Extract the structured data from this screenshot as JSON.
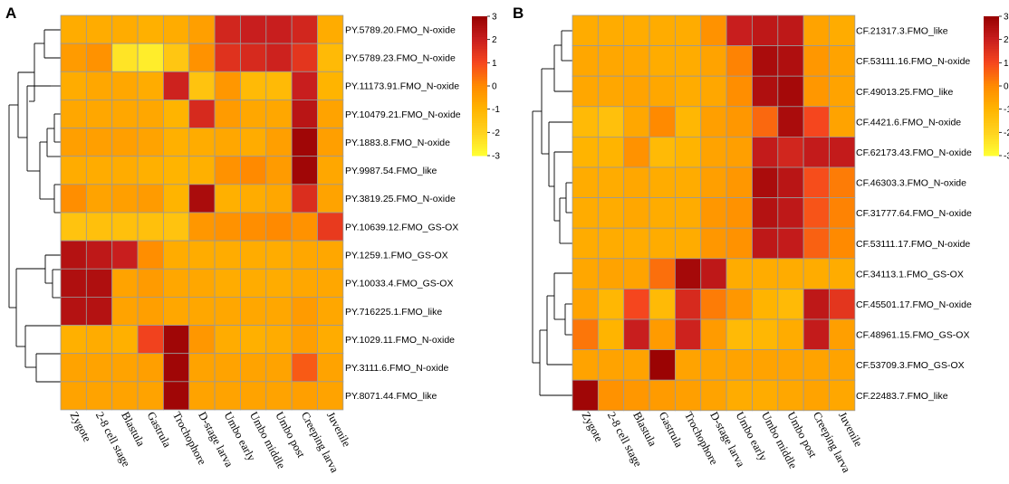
{
  "colors": {
    "scale": [
      "#FFFF33",
      "#FFD21E",
      "#FFB400",
      "#FF8A00",
      "#F5461E",
      "#C81E1E",
      "#960000"
    ],
    "grid": "#9a9a9a"
  },
  "chart_data": [
    {
      "panel": "A",
      "type": "heatmap",
      "columns": [
        "Zygote",
        "2-8 cell stage",
        "Blastula",
        "Gastrula",
        "Trochophore",
        "D-stage larva",
        "Umbo early",
        "Umbo middle",
        "Umbo post",
        "Creeping larva",
        "Juvenile"
      ],
      "rows": [
        "PY.5789.20.FMO_N-oxide",
        "PY.5789.23.FMO_N-oxide",
        "PY.11173.91.FMO_N-oxide",
        "PY.10479.21.FMO_N-oxide",
        "PY.1883.8.FMO_N-oxide",
        "PY.9987.54.FMO_like",
        "PY.3819.25.FMO_N-oxide",
        "PY.10639.12.FMO_GS-OX",
        "PY.1259.1.FMO_GS-OX",
        "PY.10033.4.FMO_GS-OX",
        "PY.716225.1.FMO_like",
        "PY.1029.11.FMO_N-oxide",
        "PY.3111.6.FMO_N-oxide",
        "PY.8071.44.FMO_like"
      ],
      "values": [
        [
          -0.8,
          -0.8,
          -0.8,
          -0.9,
          -0.8,
          -0.5,
          1.8,
          2.0,
          2.0,
          1.8,
          -0.8
        ],
        [
          -0.4,
          -0.2,
          -2.4,
          -2.6,
          -1.6,
          -0.2,
          1.5,
          1.7,
          1.9,
          1.4,
          -1.2
        ],
        [
          -0.8,
          -0.7,
          -0.7,
          -0.8,
          1.9,
          -1.5,
          -0.3,
          -1.2,
          -1.2,
          2.0,
          -1.0
        ],
        [
          -0.7,
          -0.7,
          -0.7,
          -0.7,
          -1.0,
          1.7,
          -0.4,
          -0.7,
          -0.7,
          2.3,
          -0.6
        ],
        [
          -0.5,
          -0.5,
          -0.5,
          -0.6,
          -0.9,
          -0.8,
          -0.7,
          -0.8,
          -0.5,
          2.8,
          -0.5
        ],
        [
          -0.8,
          -0.8,
          -0.8,
          -0.9,
          -1.0,
          -0.9,
          -0.2,
          0.0,
          -0.4,
          2.8,
          -0.7
        ],
        [
          -0.1,
          -0.6,
          -0.5,
          -0.4,
          -1.0,
          2.6,
          -0.9,
          -0.8,
          -0.7,
          1.6,
          -0.6
        ],
        [
          -1.5,
          -1.4,
          -1.4,
          -1.4,
          -1.5,
          -0.3,
          -0.2,
          -0.1,
          0.0,
          -0.2,
          1.3
        ],
        [
          2.4,
          2.2,
          2.0,
          -0.1,
          -0.8,
          -0.8,
          -0.8,
          -0.8,
          -0.8,
          -0.7,
          -0.7
        ],
        [
          2.5,
          2.5,
          -0.6,
          -0.4,
          -0.7,
          -0.7,
          -0.8,
          -0.8,
          -0.8,
          -0.7,
          -0.7
        ],
        [
          2.4,
          2.4,
          -0.6,
          -0.5,
          -0.7,
          -0.7,
          -0.7,
          -0.7,
          -0.7,
          -0.4,
          -0.7
        ],
        [
          -0.9,
          -0.8,
          -0.9,
          1.1,
          2.8,
          -0.3,
          -0.8,
          -0.9,
          -0.8,
          -0.5,
          -0.8
        ],
        [
          -0.6,
          -0.6,
          -0.6,
          -0.5,
          2.8,
          -0.6,
          -0.6,
          -0.6,
          -0.6,
          0.7,
          -0.6
        ],
        [
          -0.6,
          -0.6,
          -0.6,
          -0.6,
          2.8,
          -0.6,
          -0.6,
          -0.6,
          -0.6,
          -0.5,
          -0.6
        ]
      ],
      "legend": {
        "ticks": [
          3,
          2,
          1,
          0,
          -1,
          -2,
          -3
        ],
        "min": -3,
        "max": 3
      }
    },
    {
      "panel": "B",
      "type": "heatmap",
      "columns": [
        "Zygote",
        "2-8 cell stage",
        "Blastula",
        "Gastrula",
        "Trochophore",
        "D-stage larva",
        "Umbo early",
        "Umbo middle",
        "Umbo post",
        "Creeping larva",
        "Juvenile"
      ],
      "rows": [
        "CF.21317.3.FMO_like",
        "CF.53111.16.FMO_N-oxide",
        "CF.49013.25.FMO_like",
        "CF.4421.6.FMO_N-oxide",
        "CF.62173.43.FMO_N-oxide",
        "CF.46303.3.FMO_N-oxide",
        "CF.31777.64.FMO_N-oxide",
        "CF.53111.17.FMO_N-oxide",
        "CF.34113.1.FMO_GS-OX",
        "CF.45501.17.FMO_N-oxide",
        "CF.48961.15.FMO_GS-OX",
        "CF.53709.3.FMO_GS-OX",
        "CF.22483.7.FMO_like"
      ],
      "values": [
        [
          -0.8,
          -0.8,
          -0.8,
          -0.8,
          -0.8,
          -0.2,
          2.0,
          2.2,
          2.2,
          -0.6,
          -0.8
        ],
        [
          -0.7,
          -0.7,
          -0.7,
          -0.8,
          -0.8,
          -0.6,
          0.1,
          2.6,
          2.5,
          -0.3,
          -0.6
        ],
        [
          -0.7,
          -0.7,
          -0.6,
          -0.7,
          -0.8,
          -0.7,
          -0.1,
          2.5,
          2.7,
          -0.3,
          -0.6
        ],
        [
          -1.2,
          -1.4,
          -0.7,
          0.0,
          -1.1,
          -0.5,
          -0.3,
          0.5,
          2.6,
          1.0,
          -0.6
        ],
        [
          -1.0,
          -1.0,
          -0.2,
          -1.2,
          -1.0,
          -0.6,
          -0.5,
          2.1,
          1.8,
          2.1,
          2.1
        ],
        [
          -0.8,
          -0.8,
          -0.7,
          -0.8,
          -0.8,
          -0.5,
          -0.3,
          2.6,
          2.3,
          0.9,
          0.2
        ],
        [
          -0.8,
          -0.8,
          -0.7,
          -0.8,
          -0.8,
          -0.3,
          -0.2,
          2.4,
          2.2,
          0.8,
          0.1
        ],
        [
          -0.8,
          -0.8,
          -0.8,
          -0.8,
          -0.8,
          -0.3,
          -0.2,
          2.2,
          2.1,
          0.6,
          0.0
        ],
        [
          -0.7,
          -0.6,
          -0.6,
          0.4,
          2.7,
          2.2,
          -0.8,
          -0.8,
          -0.8,
          -0.8,
          -0.8
        ],
        [
          -0.6,
          -1.1,
          1.0,
          -1.2,
          1.7,
          0.2,
          -0.3,
          -1.0,
          -1.2,
          2.2,
          1.4
        ],
        [
          0.3,
          -1.0,
          2.0,
          -0.4,
          1.9,
          -0.4,
          -1.2,
          -1.1,
          -0.8,
          2.1,
          -0.5
        ],
        [
          -0.6,
          -0.6,
          -0.6,
          2.9,
          -0.6,
          -0.6,
          -0.6,
          -0.6,
          -0.6,
          -0.6,
          -0.6
        ],
        [
          2.8,
          -0.2,
          -0.3,
          -0.4,
          -0.5,
          -0.6,
          -0.8,
          -0.8,
          -0.7,
          -0.6,
          -0.7
        ]
      ],
      "legend": {
        "ticks": [
          3,
          2,
          1,
          0,
          -1,
          -2,
          -3
        ],
        "min": -3,
        "max": 3
      }
    }
  ]
}
